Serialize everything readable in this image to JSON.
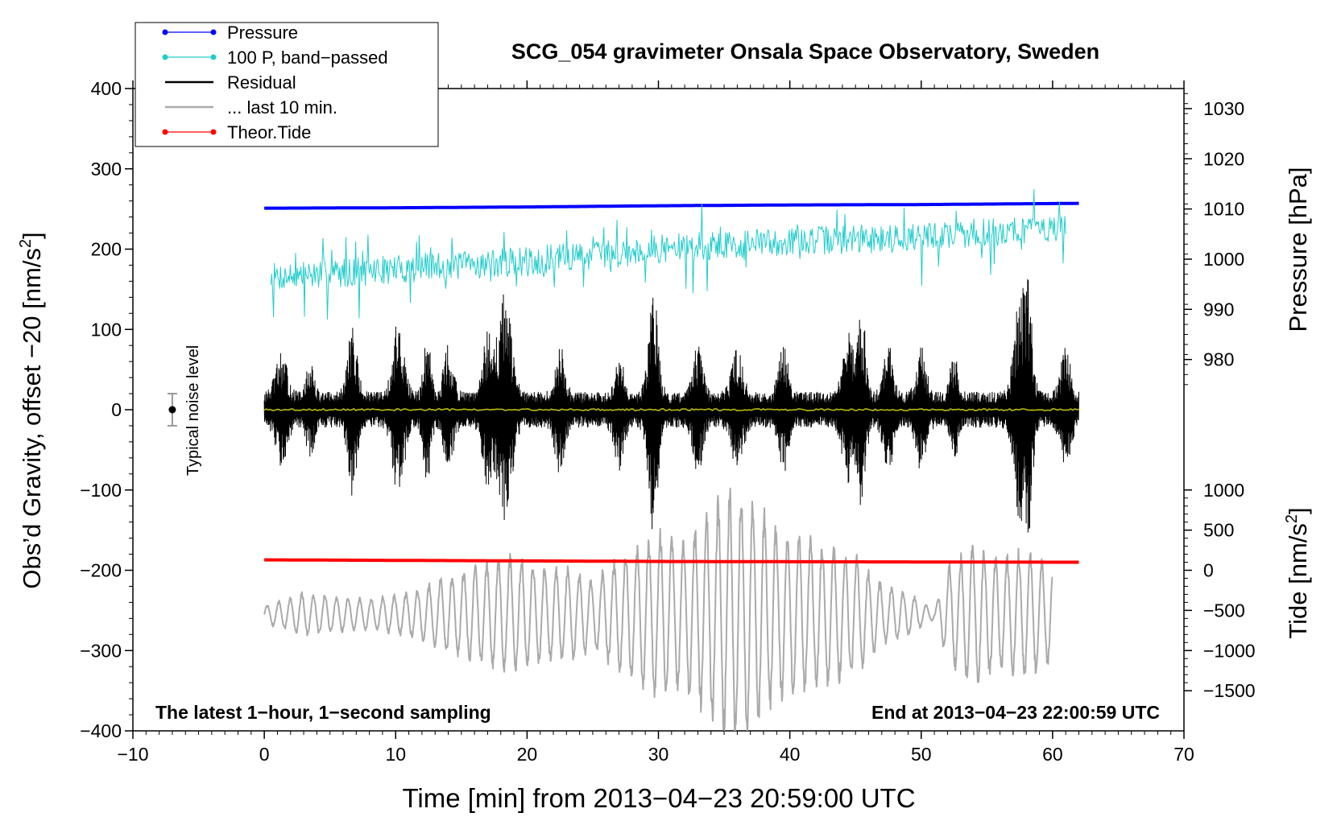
{
  "chart_data": {
    "type": "line",
    "title": "SCG_054 gravimeter Onsala Space Observatory, Sweden",
    "xlabel": "Time [min] from 2013−04−23 20:59:00 UTC",
    "ylabel_left_main": "Obs’d Gravity, offset −20 [nm/s",
    "ylabel_left_sup": "2",
    "ylabel_left_close": "]",
    "ylabel_right_pressure": "Pressure [hPa]",
    "ylabel_right_tide_main": "Tide [nm/s",
    "ylabel_right_tide_sup": "2",
    "ylabel_right_tide_close": "]",
    "xlim": [
      -10,
      70
    ],
    "ylim": [
      -400,
      400
    ],
    "x_ticks": [
      {
        "v": -10,
        "label": "−10"
      },
      {
        "v": 0,
        "label": "0"
      },
      {
        "v": 10,
        "label": "10"
      },
      {
        "v": 20,
        "label": "20"
      },
      {
        "v": 30,
        "label": "30"
      },
      {
        "v": 40,
        "label": "40"
      },
      {
        "v": 50,
        "label": "50"
      },
      {
        "v": 60,
        "label": "60"
      },
      {
        "v": 70,
        "label": "70"
      }
    ],
    "y_ticks": [
      {
        "v": 400,
        "label": "400"
      },
      {
        "v": 300,
        "label": "300"
      },
      {
        "v": 200,
        "label": "200"
      },
      {
        "v": 100,
        "label": "100"
      },
      {
        "v": 0,
        "label": "0"
      },
      {
        "v": -100,
        "label": "−100"
      },
      {
        "v": -200,
        "label": "−200"
      },
      {
        "v": -300,
        "label": "−300"
      },
      {
        "v": -400,
        "label": "−400"
      }
    ],
    "pressure_axis": {
      "ref_hpa": 1010,
      "ref_y": 250,
      "nm_per_hpa": 6.25,
      "ticks": [
        {
          "v": 1030,
          "label": "1030"
        },
        {
          "v": 1020,
          "label": "1020"
        },
        {
          "v": 1010,
          "label": "1010"
        },
        {
          "v": 1000,
          "label": "1000"
        },
        {
          "v": 990,
          "label": "990"
        },
        {
          "v": 980,
          "label": "980"
        }
      ]
    },
    "tide_axis": {
      "ref_tide": 0,
      "ref_y": -200,
      "nm_per_unit": 0.1,
      "ticks": [
        {
          "v": 1000,
          "label": "1000"
        },
        {
          "v": 500,
          "label": "500"
        },
        {
          "v": 0,
          "label": "0"
        },
        {
          "v": -500,
          "label": "−500"
        },
        {
          "v": -1000,
          "label": "−1000"
        },
        {
          "v": -1500,
          "label": "−1500"
        }
      ]
    },
    "legend": {
      "placement": "top-left",
      "entries": [
        {
          "label": "Pressure",
          "color": "#0000ff",
          "style": "dot-line"
        },
        {
          "label": "100 P, band−passed",
          "color": "#22cccc",
          "style": "dot-line"
        },
        {
          "label": "Residual",
          "color": "#000000",
          "style": "line"
        },
        {
          "label": "... last 10 min.",
          "color": "#aaaaaa",
          "style": "line"
        },
        {
          "label": "Theor.Tide",
          "color": "#ff0000",
          "style": "dot-line"
        }
      ]
    },
    "annotations": {
      "bottom_left": "The latest 1−hour, 1−second sampling",
      "bottom_right": "End at 2013−04−23 22:00:59 UTC",
      "noise_label": "Typical noise level"
    },
    "noise_bar": {
      "x": -7,
      "center": 0,
      "half_range": 20
    },
    "series": [
      {
        "name": "Pressure",
        "color": "#0000ff",
        "kind": "smooth",
        "points": [
          [
            0,
            251
          ],
          [
            10,
            251.5
          ],
          [
            20,
            252.5
          ],
          [
            30,
            254
          ],
          [
            40,
            255
          ],
          [
            50,
            255.5
          ],
          [
            62,
            257
          ]
        ]
      },
      {
        "name": "100 P, band−passed",
        "color": "#22cccc",
        "kind": "noise",
        "x_range": [
          0.5,
          61
        ],
        "samples": 900,
        "seed": 7,
        "base": [
          [
            0.5,
            165
          ],
          [
            10,
            175
          ],
          [
            20,
            185
          ],
          [
            30,
            200
          ],
          [
            40,
            210
          ],
          [
            50,
            215
          ],
          [
            61,
            228
          ]
        ],
        "amplitude": 18,
        "spikes": 0.06,
        "spike_amp": 45
      },
      {
        "name": "Residual",
        "color": "#000000",
        "kind": "burst",
        "x_range": [
          0,
          62
        ],
        "samples": 2800,
        "seed": 13,
        "base_amp": 22,
        "bursts": [
          [
            1.3,
            0.6,
            50
          ],
          [
            3.5,
            0.4,
            40
          ],
          [
            6.7,
            0.5,
            85
          ],
          [
            10.2,
            0.6,
            90
          ],
          [
            12.4,
            0.4,
            70
          ],
          [
            14,
            0.5,
            60
          ],
          [
            17,
            0.5,
            75
          ],
          [
            18.3,
            0.7,
            125
          ],
          [
            22.5,
            0.5,
            60
          ],
          [
            27,
            0.5,
            55
          ],
          [
            29.6,
            0.5,
            135
          ],
          [
            33,
            0.5,
            60
          ],
          [
            36,
            0.6,
            55
          ],
          [
            39.5,
            0.5,
            60
          ],
          [
            44.5,
            0.6,
            75
          ],
          [
            45.5,
            0.4,
            100
          ],
          [
            47.5,
            0.5,
            60
          ],
          [
            50,
            0.5,
            60
          ],
          [
            52.5,
            0.4,
            50
          ],
          [
            57.5,
            0.6,
            120
          ],
          [
            58.2,
            0.4,
            105
          ],
          [
            61,
            0.5,
            60
          ]
        ]
      },
      {
        "name": "Mean",
        "color": "#bbbb00",
        "kind": "noise",
        "x_range": [
          0,
          62
        ],
        "samples": 400,
        "seed": 3,
        "base": [
          [
            0,
            0
          ],
          [
            62,
            0
          ]
        ],
        "amplitude": 1.2,
        "spikes": 0,
        "spike_amp": 0
      },
      {
        "name": "... last 10 min.",
        "color": "#aaaaaa",
        "kind": "wave",
        "x_range": [
          0,
          60
        ],
        "samples": 1800,
        "period": 0.88,
        "center": -255,
        "seed": 5,
        "envelope": [
          [
            0,
            10
          ],
          [
            3,
            25
          ],
          [
            6,
            20
          ],
          [
            8,
            18
          ],
          [
            11,
            25
          ],
          [
            14,
            45
          ],
          [
            17,
            60
          ],
          [
            19,
            70
          ],
          [
            21,
            55
          ],
          [
            23,
            55
          ],
          [
            25,
            40
          ],
          [
            26.5,
            60
          ],
          [
            28,
            75
          ],
          [
            30,
            95
          ],
          [
            32,
            85
          ],
          [
            34,
            120
          ],
          [
            35.5,
            145
          ],
          [
            37,
            135
          ],
          [
            39,
            100
          ],
          [
            41,
            90
          ],
          [
            43,
            80
          ],
          [
            45,
            70
          ],
          [
            47,
            35
          ],
          [
            49,
            25
          ],
          [
            51,
            5
          ],
          [
            52,
            55
          ],
          [
            54,
            80
          ],
          [
            56,
            65
          ],
          [
            58,
            75
          ],
          [
            60,
            55
          ]
        ]
      },
      {
        "name": "Theor.Tide",
        "color": "#ff0000",
        "kind": "smooth",
        "points": [
          [
            0,
            -187
          ],
          [
            15,
            -188
          ],
          [
            30,
            -189
          ],
          [
            45,
            -189.5
          ],
          [
            62,
            -190
          ]
        ]
      }
    ]
  }
}
